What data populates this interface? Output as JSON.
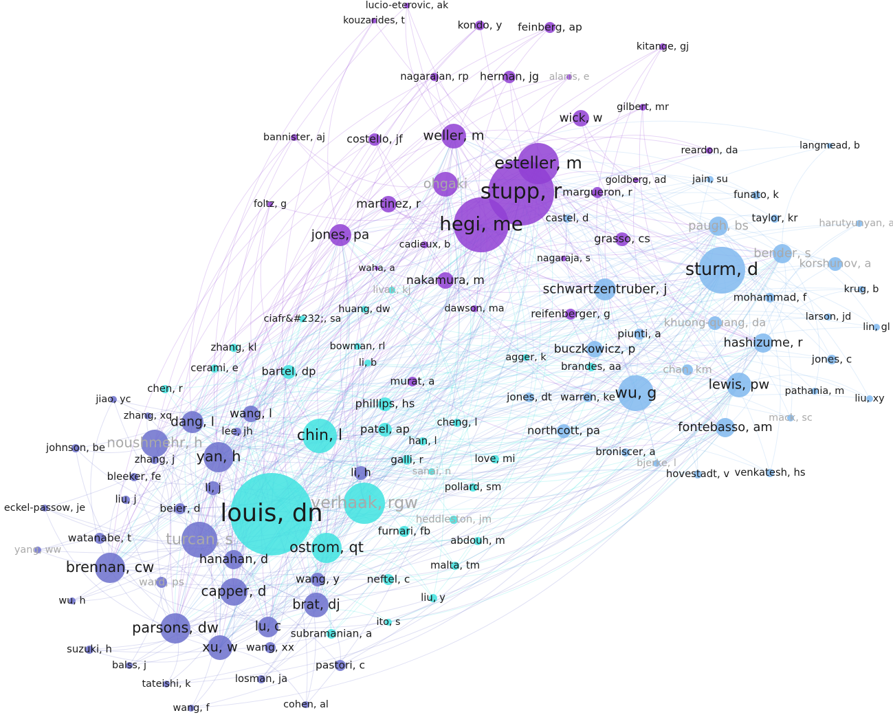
{
  "nodes": [
    {
      "label": "lucio-eterovic, ak"
    },
    {
      "label": "kouzarides, t"
    },
    {
      "label": "kondo, y"
    },
    {
      "label": "feinberg, ap"
    },
    {
      "label": "kitange, gj"
    },
    {
      "label": "nagarajan, rp"
    },
    {
      "label": "herman, jg"
    },
    {
      "label": "alanis, e"
    },
    {
      "label": "gilbert, mr"
    },
    {
      "label": "bannister, aj"
    },
    {
      "label": "costello, jf"
    },
    {
      "label": "weller, m"
    },
    {
      "label": "wick, w"
    },
    {
      "label": "reardon, da"
    },
    {
      "label": "esteller, m"
    },
    {
      "label": "ohgaki"
    },
    {
      "label": "stupp, r"
    },
    {
      "label": "goldberg, ad"
    },
    {
      "label": "margueron, r"
    },
    {
      "label": "foltz, g"
    },
    {
      "label": "martinez, r"
    },
    {
      "label": "jones, pa"
    },
    {
      "label": "hegi, me"
    },
    {
      "label": "cadieux, b"
    },
    {
      "label": "grasso, cs"
    },
    {
      "label": "nagaraja, s"
    },
    {
      "label": "nakamura, m"
    },
    {
      "label": "reifenberger, g"
    },
    {
      "label": "waha, a"
    },
    {
      "label": "dawson, ma"
    },
    {
      "label": "langmead, b"
    },
    {
      "label": "jain, su"
    },
    {
      "label": "funato, k"
    },
    {
      "label": "paugh, bs"
    },
    {
      "label": "taylor, kr"
    },
    {
      "label": "harutyunyan, as"
    },
    {
      "label": "bender, s"
    },
    {
      "label": "korshunov, a"
    },
    {
      "label": "sturm, d"
    },
    {
      "label": "castel, d"
    },
    {
      "label": "mohammad, f"
    },
    {
      "label": "krug, b"
    },
    {
      "label": "schwartzentruber, j"
    },
    {
      "label": "khuong-quang, da"
    },
    {
      "label": "larson, jd"
    },
    {
      "label": "lin, gl"
    },
    {
      "label": "piunti, a"
    },
    {
      "label": "hashizume, r"
    },
    {
      "label": "buczkowicz, p"
    },
    {
      "label": "jones, c"
    },
    {
      "label": "chan, km"
    },
    {
      "label": "lewis, pw"
    },
    {
      "label": "wu, g"
    },
    {
      "label": "pathania, m"
    },
    {
      "label": "liu, xy"
    },
    {
      "label": "jones, dt"
    },
    {
      "label": "warren, ke"
    },
    {
      "label": "mack, sc"
    },
    {
      "label": "fontebasso, am"
    },
    {
      "label": "northcott, pa"
    },
    {
      "label": "broniscer, a"
    },
    {
      "label": "bjerke, l"
    },
    {
      "label": "hovestadt, v"
    },
    {
      "label": "venkatesh, hs"
    },
    {
      "label": "chin, l"
    },
    {
      "label": "louis, dn"
    },
    {
      "label": "verhaak, rgw"
    },
    {
      "label": "ostrom, qt"
    },
    {
      "label": "patel, ap"
    },
    {
      "label": "phillips, hs"
    },
    {
      "label": "bartel, dp"
    },
    {
      "label": "zhang, kl"
    },
    {
      "label": "cerami, e"
    },
    {
      "label": "bowman, rl"
    },
    {
      "label": "li, b"
    },
    {
      "label": "chen, r"
    },
    {
      "label": "huang, dw"
    },
    {
      "label": "ciafr&#232;, sa"
    },
    {
      "label": "livak, kj"
    },
    {
      "label": "agger, k"
    },
    {
      "label": "brandes, aa"
    },
    {
      "label": "murat, a"
    },
    {
      "label": "cheng, l"
    },
    {
      "label": "han, l"
    },
    {
      "label": "love, mi"
    },
    {
      "label": "galli, r"
    },
    {
      "label": "sanai, n"
    },
    {
      "label": "li, h"
    },
    {
      "label": "pollard, sm"
    },
    {
      "label": "heddleston, jm"
    },
    {
      "label": "furnari, fb"
    },
    {
      "label": "abdouh, m"
    },
    {
      "label": "malta, tm"
    },
    {
      "label": "neftel, c"
    },
    {
      "label": "liu, y"
    },
    {
      "label": "ito, s"
    },
    {
      "label": "subramanian, a"
    },
    {
      "label": "jiao, yc"
    },
    {
      "label": "zhang, xq"
    },
    {
      "label": "dang, l"
    },
    {
      "label": "wang, l"
    },
    {
      "label": "lee, jh"
    },
    {
      "label": "johnson, be"
    },
    {
      "label": "noushmehr, h"
    },
    {
      "label": "zhang, j"
    },
    {
      "label": "yan, h"
    },
    {
      "label": "bleeker, fe"
    },
    {
      "label": "li, j"
    },
    {
      "label": "liu, j"
    },
    {
      "label": "beier, d"
    },
    {
      "label": "eckel-passow, je"
    },
    {
      "label": "watanabe, t"
    },
    {
      "label": "turcan, s"
    },
    {
      "label": "yang, ww"
    },
    {
      "label": "brennan, cw"
    },
    {
      "label": "hanahan, d"
    },
    {
      "label": "ward, ps"
    },
    {
      "label": "capper, d"
    },
    {
      "label": "wang, y"
    },
    {
      "label": "wu, h"
    },
    {
      "label": "brat, dj"
    },
    {
      "label": "parsons, dw"
    },
    {
      "label": "lu, c"
    },
    {
      "label": "xu, w"
    },
    {
      "label": "suzuki, h"
    },
    {
      "label": "wang, xx"
    },
    {
      "label": "pastori, c"
    },
    {
      "label": "balss, j"
    },
    {
      "label": "tateishi, k"
    },
    {
      "label": "losman, ja"
    },
    {
      "label": "wang, f"
    },
    {
      "label": "cohen, al"
    }
  ]
}
